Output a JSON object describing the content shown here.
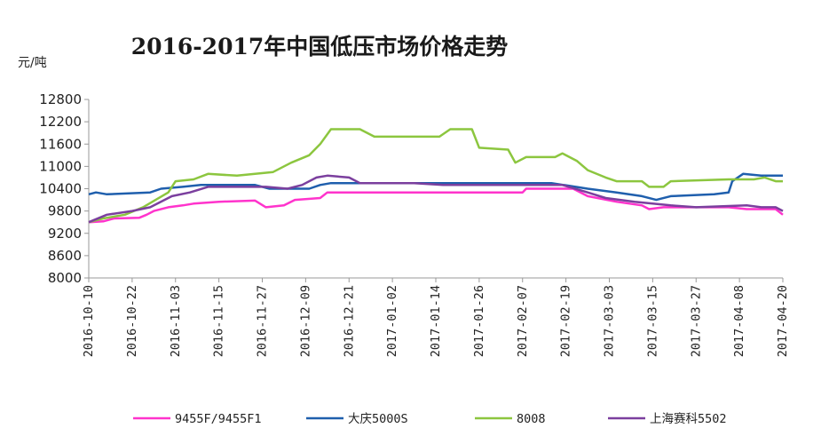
{
  "chart_data": {
    "type": "line",
    "title": "2016-2017年中国低压市场价格走势",
    "ylabel": "元/吨",
    "xlabel": "",
    "ylim": [
      8000,
      12800
    ],
    "yticks": [
      8000,
      8600,
      9200,
      9800,
      10400,
      11000,
      11600,
      12200,
      12800
    ],
    "xticks": [
      "2016-10-10",
      "2016-10-22",
      "2016-11-03",
      "2016-11-15",
      "2016-11-27",
      "2016-12-09",
      "2016-12-21",
      "2017-01-02",
      "2017-01-14",
      "2017-01-26",
      "2017-02-07",
      "2017-02-19",
      "2017-03-03",
      "2017-03-15",
      "2017-03-27",
      "2017-04-08",
      "2017-04-20"
    ],
    "x_start": "2016-10-10",
    "x_end": "2017-04-20",
    "grid": false,
    "legend_position": "bottom",
    "series": [
      {
        "name": "9455F/9455F1",
        "color": "#ff33cc",
        "points": [
          [
            "2016-10-10",
            9500
          ],
          [
            "2016-10-14",
            9520
          ],
          [
            "2016-10-17",
            9600
          ],
          [
            "2016-10-24",
            9620
          ],
          [
            "2016-10-26",
            9700
          ],
          [
            "2016-10-28",
            9800
          ],
          [
            "2016-11-01",
            9900
          ],
          [
            "2016-11-05",
            9950
          ],
          [
            "2016-11-08",
            10000
          ],
          [
            "2016-11-15",
            10050
          ],
          [
            "2016-11-25",
            10080
          ],
          [
            "2016-11-28",
            9900
          ],
          [
            "2016-12-03",
            9950
          ],
          [
            "2016-12-06",
            10100
          ],
          [
            "2016-12-13",
            10150
          ],
          [
            "2016-12-15",
            10300
          ],
          [
            "2016-12-30",
            10300
          ],
          [
            "2017-01-20",
            10300
          ],
          [
            "2017-02-07",
            10300
          ],
          [
            "2017-02-08",
            10400
          ],
          [
            "2017-02-21",
            10400
          ],
          [
            "2017-02-25",
            10200
          ],
          [
            "2017-03-05",
            10050
          ],
          [
            "2017-03-12",
            9950
          ],
          [
            "2017-03-14",
            9850
          ],
          [
            "2017-03-18",
            9900
          ],
          [
            "2017-04-05",
            9900
          ],
          [
            "2017-04-10",
            9850
          ],
          [
            "2017-04-18",
            9850
          ],
          [
            "2017-04-20",
            9700
          ]
        ]
      },
      {
        "name": "大庆5000S",
        "color": "#1f5fad",
        "points": [
          [
            "2016-10-10",
            10250
          ],
          [
            "2016-10-12",
            10300
          ],
          [
            "2016-10-15",
            10250
          ],
          [
            "2016-10-27",
            10300
          ],
          [
            "2016-10-30",
            10400
          ],
          [
            "2016-11-05",
            10450
          ],
          [
            "2016-11-10",
            10500
          ],
          [
            "2016-11-25",
            10500
          ],
          [
            "2016-11-29",
            10400
          ],
          [
            "2016-12-10",
            10400
          ],
          [
            "2016-12-13",
            10500
          ],
          [
            "2016-12-16",
            10550
          ],
          [
            "2017-01-10",
            10550
          ],
          [
            "2017-01-30",
            10550
          ],
          [
            "2017-02-15",
            10550
          ],
          [
            "2017-02-25",
            10400
          ],
          [
            "2017-03-05",
            10300
          ],
          [
            "2017-03-12",
            10200
          ],
          [
            "2017-03-16",
            10100
          ],
          [
            "2017-03-20",
            10200
          ],
          [
            "2017-04-01",
            10250
          ],
          [
            "2017-04-05",
            10300
          ],
          [
            "2017-04-06",
            10600
          ],
          [
            "2017-04-09",
            10800
          ],
          [
            "2017-04-14",
            10750
          ],
          [
            "2017-04-20",
            10750
          ]
        ]
      },
      {
        "name": "8008",
        "color": "#8cc63f",
        "points": [
          [
            "2016-10-10",
            9500
          ],
          [
            "2016-10-14",
            9600
          ],
          [
            "2016-10-20",
            9700
          ],
          [
            "2016-10-25",
            9900
          ],
          [
            "2016-11-01",
            10300
          ],
          [
            "2016-11-03",
            10600
          ],
          [
            "2016-11-08",
            10650
          ],
          [
            "2016-11-12",
            10800
          ],
          [
            "2016-11-20",
            10750
          ],
          [
            "2016-11-25",
            10800
          ],
          [
            "2016-11-30",
            10850
          ],
          [
            "2016-12-05",
            11100
          ],
          [
            "2016-12-10",
            11300
          ],
          [
            "2016-12-13",
            11600
          ],
          [
            "2016-12-16",
            12000
          ],
          [
            "2016-12-24",
            12000
          ],
          [
            "2016-12-28",
            11800
          ],
          [
            "2017-01-15",
            11800
          ],
          [
            "2017-01-18",
            12000
          ],
          [
            "2017-01-24",
            12000
          ],
          [
            "2017-01-26",
            11500
          ],
          [
            "2017-02-03",
            11450
          ],
          [
            "2017-02-05",
            11100
          ],
          [
            "2017-02-08",
            11250
          ],
          [
            "2017-02-16",
            11250
          ],
          [
            "2017-02-18",
            11350
          ],
          [
            "2017-02-22",
            11150
          ],
          [
            "2017-02-25",
            10900
          ],
          [
            "2017-03-02",
            10700
          ],
          [
            "2017-03-05",
            10600
          ],
          [
            "2017-03-12",
            10600
          ],
          [
            "2017-03-14",
            10450
          ],
          [
            "2017-03-18",
            10450
          ],
          [
            "2017-03-20",
            10600
          ],
          [
            "2017-04-05",
            10650
          ],
          [
            "2017-04-12",
            10650
          ],
          [
            "2017-04-15",
            10700
          ],
          [
            "2017-04-18",
            10600
          ],
          [
            "2017-04-20",
            10600
          ]
        ]
      },
      {
        "name": "上海赛科5502",
        "color": "#7b3f9e",
        "points": [
          [
            "2016-10-10",
            9500
          ],
          [
            "2016-10-15",
            9700
          ],
          [
            "2016-10-22",
            9800
          ],
          [
            "2016-10-27",
            9900
          ],
          [
            "2016-11-02",
            10200
          ],
          [
            "2016-11-07",
            10300
          ],
          [
            "2016-11-12",
            10450
          ],
          [
            "2016-11-28",
            10450
          ],
          [
            "2016-12-04",
            10400
          ],
          [
            "2016-12-08",
            10500
          ],
          [
            "2016-12-12",
            10700
          ],
          [
            "2016-12-15",
            10750
          ],
          [
            "2016-12-21",
            10700
          ],
          [
            "2016-12-24",
            10550
          ],
          [
            "2017-01-08",
            10550
          ],
          [
            "2017-01-16",
            10500
          ],
          [
            "2017-02-18",
            10500
          ],
          [
            "2017-02-25",
            10300
          ],
          [
            "2017-03-02",
            10150
          ],
          [
            "2017-03-10",
            10050
          ],
          [
            "2017-03-20",
            9950
          ],
          [
            "2017-03-27",
            9900
          ],
          [
            "2017-04-10",
            9950
          ],
          [
            "2017-04-14",
            9900
          ],
          [
            "2017-04-18",
            9900
          ],
          [
            "2017-04-20",
            9800
          ]
        ]
      }
    ]
  }
}
